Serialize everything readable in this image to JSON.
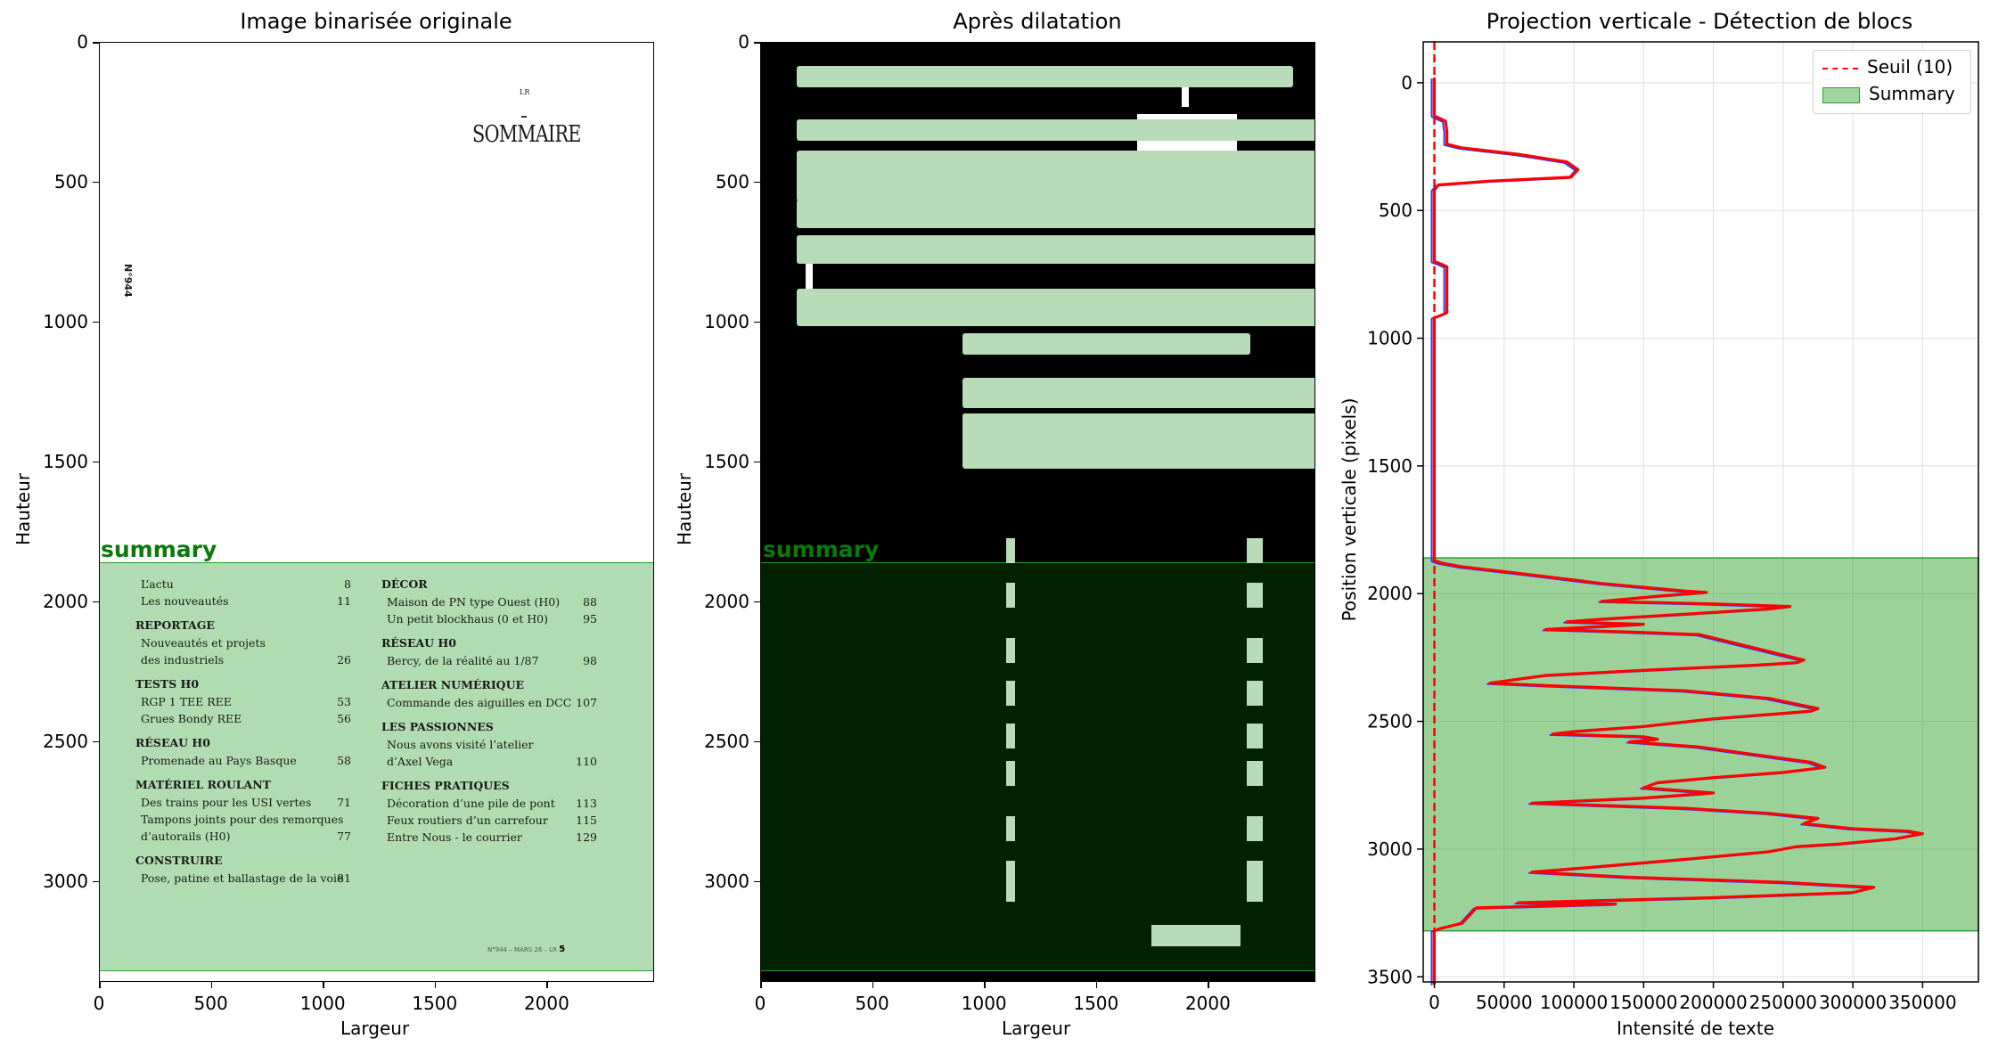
{
  "figure": {
    "panels": [
      {
        "id": "left",
        "title": "Image binarisée originale",
        "xlabel": "Largeur",
        "ylabel": "Hauteur"
      },
      {
        "id": "mid",
        "title": "Après dilatation",
        "xlabel": "Largeur",
        "ylabel": "Hauteur"
      },
      {
        "id": "right",
        "title": "Projection verticale - Détection de blocs",
        "xlabel": "Intensité de texte",
        "ylabel": "Position verticale (pixels)"
      }
    ]
  },
  "document": {
    "sommaire_title": "SOMMAIRE",
    "small_mark": "LR",
    "issue_vertical": "N°944",
    "summary_label": "summary",
    "footer": "N°944 – MARS 26 – LR",
    "footer_page": "5",
    "left_column": [
      {
        "text": "L’actu",
        "page": "8",
        "bold": false
      },
      {
        "text": "Les nouveautés",
        "page": "11",
        "bold": false
      },
      {
        "text": "REPORTAGE",
        "page": "",
        "bold": true
      },
      {
        "text": "Nouveautés et projets",
        "page": "",
        "bold": false
      },
      {
        "text": "des industriels",
        "page": "26",
        "bold": false
      },
      {
        "text": "TESTS H0",
        "page": "",
        "bold": true
      },
      {
        "text": "RGP 1 TEE REE",
        "page": "53",
        "bold": false
      },
      {
        "text": "Grues Bondy REE",
        "page": "56",
        "bold": false
      },
      {
        "text": "RÉSEAU H0",
        "page": "",
        "bold": true
      },
      {
        "text": "Promenade au Pays Basque",
        "page": "58",
        "bold": false
      },
      {
        "text": "MATÉRIEL ROULANT",
        "page": "",
        "bold": true
      },
      {
        "text": "Des trains pour les USI vertes",
        "page": "71",
        "bold": false
      },
      {
        "text": "Tampons joints pour des remorques",
        "page": "",
        "bold": false
      },
      {
        "text": "d’autorails (H0)",
        "page": "77",
        "bold": false
      },
      {
        "text": "CONSTRUIRE",
        "page": "",
        "bold": true
      },
      {
        "text": "Pose, patine et ballastage de la voie",
        "page": "81",
        "bold": false
      }
    ],
    "right_column": [
      {
        "text": "DÉCOR",
        "page": "",
        "bold": true
      },
      {
        "text": "Maison de PN type Ouest (H0)",
        "page": "88",
        "bold": false
      },
      {
        "text": "Un petit blockhaus (0 et H0)",
        "page": "95",
        "bold": false
      },
      {
        "text": "RÉSEAU H0",
        "page": "",
        "bold": true
      },
      {
        "text": "Bercy, de la réalité au 1/87",
        "page": "98",
        "bold": false
      },
      {
        "text": "ATELIER NUMÉRIQUE",
        "page": "",
        "bold": true
      },
      {
        "text": "Commande des aiguilles en DCC",
        "page": "107",
        "bold": false
      },
      {
        "text": "LES PASSIONNES",
        "page": "",
        "bold": true
      },
      {
        "text": "Nous avons visité l’atelier",
        "page": "",
        "bold": false
      },
      {
        "text": "d’Axel Vega",
        "page": "110",
        "bold": false
      },
      {
        "text": "FICHES PRATIQUES",
        "page": "",
        "bold": true
      },
      {
        "text": "Décoration d’une pile de pont",
        "page": "113",
        "bold": false
      },
      {
        "text": "Feux routiers d’un carrefour",
        "page": "115",
        "bold": false
      },
      {
        "text": "Entre Nous - le courrier",
        "page": "129",
        "bold": false
      }
    ]
  },
  "chart_data": [
    {
      "type": "image",
      "title": "Image binarisée originale",
      "xlabel": "Largeur",
      "ylabel": "Hauteur",
      "xlim": [
        0,
        2480
      ],
      "ylim": [
        3360,
        0
      ],
      "xticks": [
        0,
        500,
        1000,
        1500,
        2000
      ],
      "yticks": [
        0,
        500,
        1000,
        1500,
        2000,
        2500,
        3000
      ],
      "summary_block": {
        "label": "summary",
        "y_start": 1860,
        "y_end": 3320,
        "color": "#2ca02c"
      }
    },
    {
      "type": "image",
      "title": "Après dilatation",
      "xlabel": "Largeur",
      "ylabel": "Hauteur",
      "xlim": [
        0,
        2480
      ],
      "ylim": [
        3360,
        0
      ],
      "xticks": [
        0,
        500,
        1000,
        1500,
        2000
      ],
      "yticks": [
        0,
        500,
        1000,
        1500,
        2000,
        2500,
        3000
      ],
      "summary_block": {
        "label": "summary",
        "y_start": 1860,
        "y_end": 3320,
        "color": "#2ca02c"
      }
    },
    {
      "type": "line",
      "title": "Projection verticale - Détection de blocs",
      "xlabel": "Intensité de texte",
      "ylabel": "Position verticale (pixels)",
      "xlim": [
        -8000,
        390000
      ],
      "ylim": [
        3520,
        -160
      ],
      "y_inverted": true,
      "grid": true,
      "legend_position": "top-right",
      "xticks": [
        0,
        50000,
        100000,
        150000,
        200000,
        250000,
        300000,
        350000
      ],
      "yticks": [
        0,
        500,
        1000,
        1500,
        2000,
        2500,
        3000,
        3500
      ],
      "threshold": {
        "name": "Seuil (10)",
        "value": 10,
        "color": "#ff0000"
      },
      "blocks": [
        {
          "name": "Summary",
          "y_start": 1860,
          "y_end": 3320,
          "color": "#2ca02c"
        }
      ],
      "series": [
        {
          "name": "",
          "color": "#ff0000",
          "points": [
            [
              0,
              -20
            ],
            [
              0,
              130
            ],
            [
              4000,
              140
            ],
            [
              8000,
              150
            ],
            [
              9000,
              190
            ],
            [
              9000,
              240
            ],
            [
              20000,
              255
            ],
            [
              60000,
              280
            ],
            [
              95000,
              310
            ],
            [
              103000,
              340
            ],
            [
              98000,
              370
            ],
            [
              40000,
              385
            ],
            [
              3000,
              400
            ],
            [
              0,
              420
            ],
            [
              0,
              700
            ],
            [
              5000,
              710
            ],
            [
              9000,
              720
            ],
            [
              9000,
              900
            ],
            [
              5000,
              910
            ],
            [
              0,
              920
            ],
            [
              0,
              1870
            ],
            [
              5000,
              1880
            ],
            [
              20000,
              1895
            ],
            [
              60000,
              1920
            ],
            [
              120000,
              1960
            ],
            [
              180000,
              1990
            ],
            [
              195000,
              1995
            ],
            [
              160000,
              2010
            ],
            [
              120000,
              2030
            ],
            [
              200000,
              2040
            ],
            [
              255000,
              2050
            ],
            [
              240000,
              2060
            ],
            [
              180000,
              2080
            ],
            [
              120000,
              2100
            ],
            [
              95000,
              2110
            ],
            [
              150000,
              2120
            ],
            [
              80000,
              2140
            ],
            [
              140000,
              2150
            ],
            [
              190000,
              2160
            ],
            [
              220000,
              2200
            ],
            [
              265000,
              2260
            ],
            [
              260000,
              2270
            ],
            [
              230000,
              2280
            ],
            [
              150000,
              2300
            ],
            [
              80000,
              2320
            ],
            [
              40000,
              2350
            ],
            [
              80000,
              2360
            ],
            [
              180000,
              2380
            ],
            [
              240000,
              2410
            ],
            [
              275000,
              2450
            ],
            [
              270000,
              2460
            ],
            [
              200000,
              2490
            ],
            [
              150000,
              2520
            ],
            [
              100000,
              2540
            ],
            [
              85000,
              2550
            ],
            [
              150000,
              2560
            ],
            [
              160000,
              2570
            ],
            [
              140000,
              2580
            ],
            [
              190000,
              2600
            ],
            [
              230000,
              2630
            ],
            [
              270000,
              2660
            ],
            [
              280000,
              2680
            ],
            [
              250000,
              2700
            ],
            [
              200000,
              2720
            ],
            [
              160000,
              2740
            ],
            [
              150000,
              2760
            ],
            [
              200000,
              2780
            ],
            [
              150000,
              2800
            ],
            [
              70000,
              2820
            ],
            [
              180000,
              2840
            ],
            [
              240000,
              2860
            ],
            [
              275000,
              2880
            ],
            [
              265000,
              2900
            ],
            [
              300000,
              2920
            ],
            [
              340000,
              2930
            ],
            [
              350000,
              2940
            ],
            [
              330000,
              2960
            ],
            [
              290000,
              2980
            ],
            [
              260000,
              2990
            ],
            [
              240000,
              3010
            ],
            [
              180000,
              3040
            ],
            [
              115000,
              3070
            ],
            [
              70000,
              3090
            ],
            [
              140000,
              3110
            ],
            [
              250000,
              3130
            ],
            [
              315000,
              3150
            ],
            [
              300000,
              3170
            ],
            [
              200000,
              3190
            ],
            [
              60000,
              3210
            ],
            [
              130000,
              3215
            ],
            [
              30000,
              3230
            ],
            [
              25000,
              3260
            ],
            [
              20000,
              3290
            ],
            [
              5000,
              3310
            ],
            [
              0,
              3320
            ],
            [
              0,
              3530
            ]
          ]
        }
      ]
    }
  ]
}
